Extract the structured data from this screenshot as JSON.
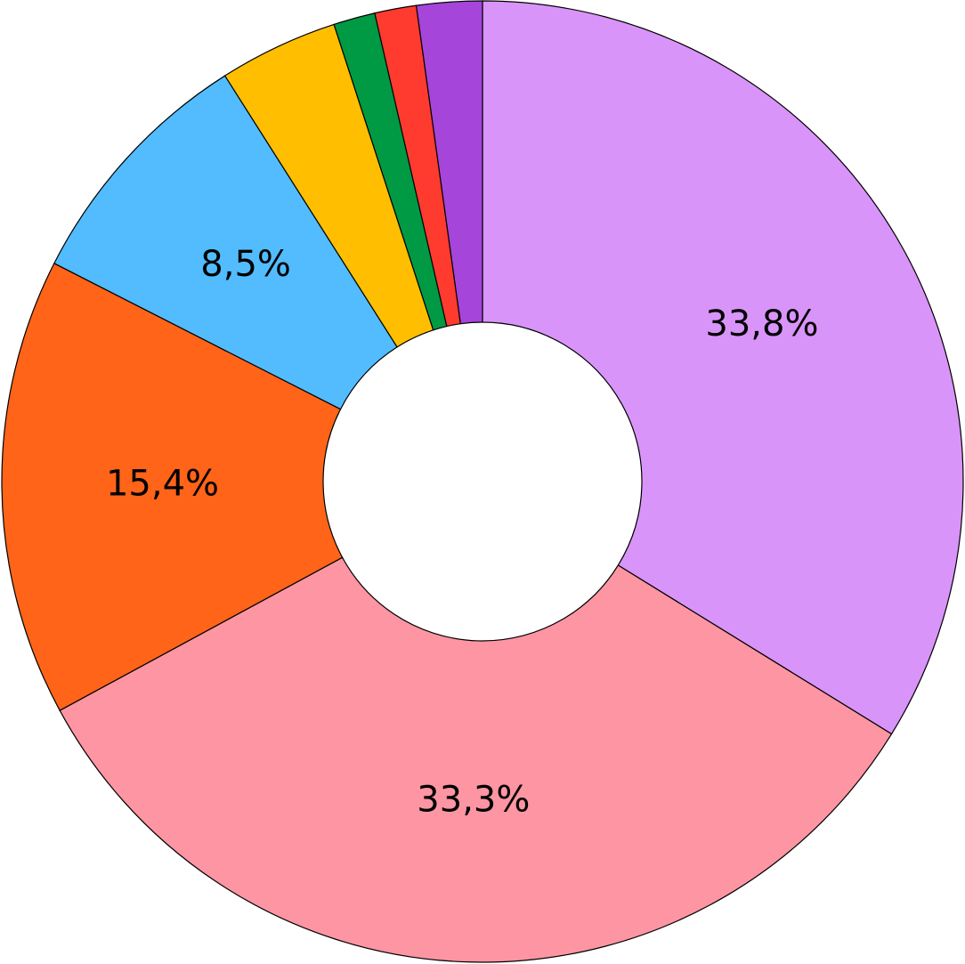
{
  "chart_data": {
    "type": "donut",
    "values": [
      33.8,
      33.3,
      15.4,
      8.5,
      4.0,
      1.4,
      1.4,
      2.2
    ],
    "value_labels": [
      "33,8%",
      "33,3%",
      "15,4%",
      "8,5%",
      null,
      null,
      null,
      null
    ],
    "colors": [
      "#d994f9",
      "#fd95a3",
      "#ff6419",
      "#52bcff",
      "#ffbf00",
      "#009a44",
      "#ff3b2f",
      "#a545d9"
    ]
  }
}
